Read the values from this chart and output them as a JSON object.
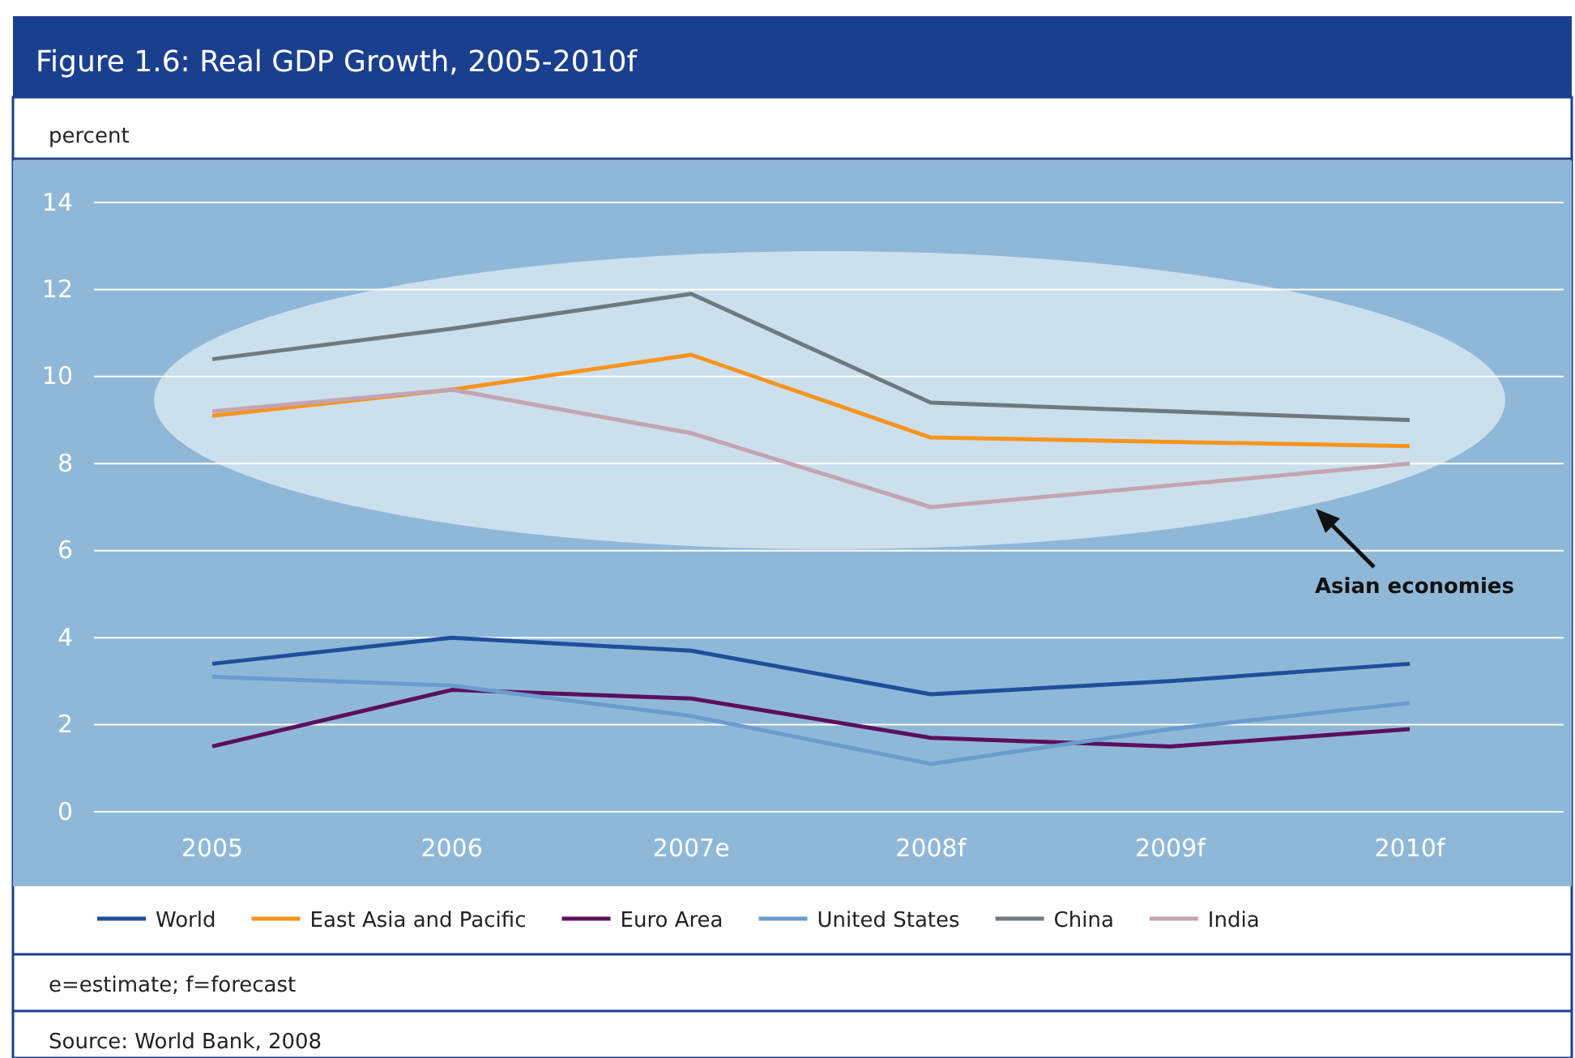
{
  "chart_data": {
    "type": "line",
    "title": "Figure 1.6: Real GDP Growth, 2005-2010f",
    "ylabel": "percent",
    "categories": [
      "2005",
      "2006",
      "2007e",
      "2008f",
      "2009f",
      "2010f"
    ],
    "series": [
      {
        "name": "World",
        "color": "#1f4e9c",
        "values": [
          3.4,
          4.0,
          3.7,
          2.7,
          3.0,
          3.4
        ]
      },
      {
        "name": "East Asia and Pacific",
        "color": "#f7941d",
        "values": [
          9.1,
          9.7,
          10.5,
          8.6,
          8.5,
          8.4
        ]
      },
      {
        "name": "Euro Area",
        "color": "#5c0f5c",
        "values": [
          1.5,
          2.8,
          2.6,
          1.7,
          1.5,
          1.9
        ]
      },
      {
        "name": "United States",
        "color": "#6a9bd1",
        "values": [
          3.1,
          2.9,
          2.2,
          1.1,
          1.9,
          2.5
        ]
      },
      {
        "name": "China",
        "color": "#6d7b80",
        "values": [
          10.4,
          11.1,
          11.9,
          9.4,
          9.2,
          9.0
        ]
      },
      {
        "name": "India",
        "color": "#c4a4b0",
        "values": [
          9.2,
          9.7,
          8.7,
          7.0,
          7.5,
          8.0
        ]
      }
    ],
    "ylim": [
      0,
      14
    ],
    "yticks": [
      0,
      2,
      4,
      6,
      8,
      10,
      12,
      14
    ],
    "grid": "y",
    "legend": "bottom",
    "line_style": "solid",
    "marker": "none",
    "annotations": [
      "Asian economies",
      "e=estimate; f=forecast",
      "Source: World Bank, 2008"
    ]
  }
}
